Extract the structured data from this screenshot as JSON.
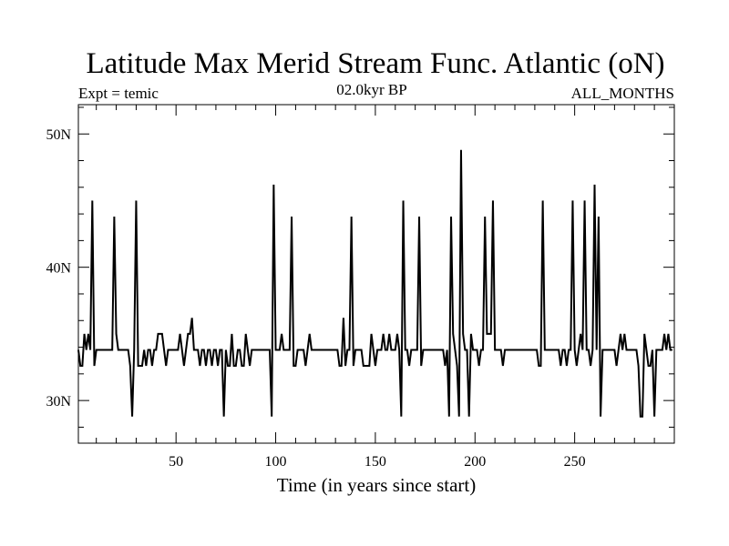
{
  "chart_data": {
    "type": "line",
    "title": "Latitude Max Merid Stream Func. Atlantic (oN)",
    "subtitle_left": "Expt = temic",
    "subtitle_center": "02.0kyr BP",
    "subtitle_right": "ALL_MONTHS",
    "xlabel": "Time (in years since start)",
    "ylabel": "",
    "xlim": [
      1,
      300
    ],
    "ylim": [
      26.8,
      52.2
    ],
    "x_ticks": [
      50,
      100,
      150,
      200,
      250
    ],
    "x_tick_labels": [
      "50",
      "100",
      "150",
      "200",
      "250"
    ],
    "y_ticks": [
      30,
      40,
      50
    ],
    "y_tick_labels": [
      "30N",
      "40N",
      "50N"
    ],
    "series": [
      {
        "values": [
          33.8,
          32.6,
          32.6,
          35.0,
          33.8,
          35.0,
          33.8,
          45.0,
          32.6,
          33.8,
          33.8,
          33.8,
          33.8,
          33.8,
          33.8,
          33.8,
          33.8,
          33.8,
          43.8,
          35.0,
          33.8,
          33.8,
          33.8,
          33.8,
          33.8,
          33.8,
          32.6,
          28.8,
          33.8,
          45.0,
          32.6,
          32.6,
          32.6,
          33.8,
          32.6,
          33.8,
          33.8,
          32.6,
          33.8,
          33.8,
          35.0,
          35.0,
          35.0,
          33.8,
          32.6,
          33.8,
          33.8,
          33.8,
          33.8,
          33.8,
          33.8,
          35.0,
          33.8,
          32.6,
          33.8,
          35.0,
          35.0,
          36.2,
          33.8,
          33.8,
          33.8,
          32.6,
          33.8,
          33.8,
          32.6,
          33.8,
          33.8,
          32.6,
          33.8,
          33.8,
          32.6,
          33.8,
          33.8,
          28.8,
          33.8,
          32.6,
          32.6,
          35.0,
          32.6,
          32.6,
          33.8,
          33.8,
          32.6,
          32.6,
          35.0,
          33.8,
          32.6,
          33.8,
          33.8,
          33.8,
          33.8,
          33.8,
          33.8,
          33.8,
          33.8,
          33.8,
          33.8,
          28.8,
          46.2,
          33.8,
          33.8,
          33.8,
          35.0,
          33.8,
          33.8,
          33.8,
          33.8,
          43.8,
          32.6,
          32.6,
          33.8,
          33.8,
          33.8,
          33.8,
          32.6,
          33.8,
          35.0,
          33.8,
          33.8,
          33.8,
          33.8,
          33.8,
          33.8,
          33.8,
          33.8,
          33.8,
          33.8,
          33.8,
          33.8,
          33.8,
          33.8,
          32.6,
          32.6,
          36.2,
          32.6,
          33.8,
          33.8,
          43.8,
          32.6,
          33.8,
          33.8,
          33.8,
          33.8,
          32.6,
          32.6,
          32.6,
          32.6,
          35.0,
          33.8,
          32.6,
          33.8,
          33.8,
          33.8,
          35.0,
          33.8,
          33.8,
          35.0,
          33.8,
          33.8,
          33.8,
          35.0,
          33.8,
          28.8,
          45.0,
          33.8,
          33.8,
          32.6,
          33.8,
          33.8,
          33.8,
          33.8,
          43.8,
          32.6,
          33.8,
          33.8,
          33.8,
          33.8,
          33.8,
          33.8,
          33.8,
          33.8,
          33.8,
          33.8,
          33.8,
          32.6,
          33.8,
          28.8,
          43.8,
          35.0,
          33.8,
          32.6,
          28.8,
          48.8,
          35.0,
          33.8,
          33.8,
          28.8,
          35.0,
          33.8,
          33.8,
          33.8,
          32.6,
          33.8,
          33.8,
          43.8,
          35.0,
          35.0,
          35.0,
          45.0,
          33.8,
          33.8,
          33.8,
          33.8,
          32.6,
          33.8,
          33.8,
          33.8,
          33.8,
          33.8,
          33.8,
          33.8,
          33.8,
          33.8,
          33.8,
          33.8,
          33.8,
          33.8,
          33.8,
          33.8,
          33.8,
          33.8,
          32.6,
          32.6,
          45.0,
          33.8,
          33.8,
          33.8,
          33.8,
          33.8,
          33.8,
          33.8,
          33.8,
          32.6,
          33.8,
          33.8,
          32.6,
          33.8,
          33.8,
          45.0,
          33.8,
          32.6,
          33.8,
          35.0,
          33.8,
          45.0,
          33.8,
          33.8,
          32.6,
          33.8,
          46.2,
          33.8,
          43.8,
          28.8,
          33.8,
          33.8,
          33.8,
          33.8,
          33.8,
          33.8,
          33.8,
          32.6,
          33.8,
          35.0,
          33.8,
          35.0,
          33.8,
          33.8,
          33.8,
          33.8,
          33.8,
          33.8,
          32.6,
          28.8,
          28.8,
          35.0,
          33.8,
          32.6,
          32.6,
          33.8,
          28.8,
          33.8,
          33.8,
          33.8,
          33.8,
          35.0,
          33.8,
          35.0,
          33.8,
          33.8
        ]
      }
    ]
  }
}
